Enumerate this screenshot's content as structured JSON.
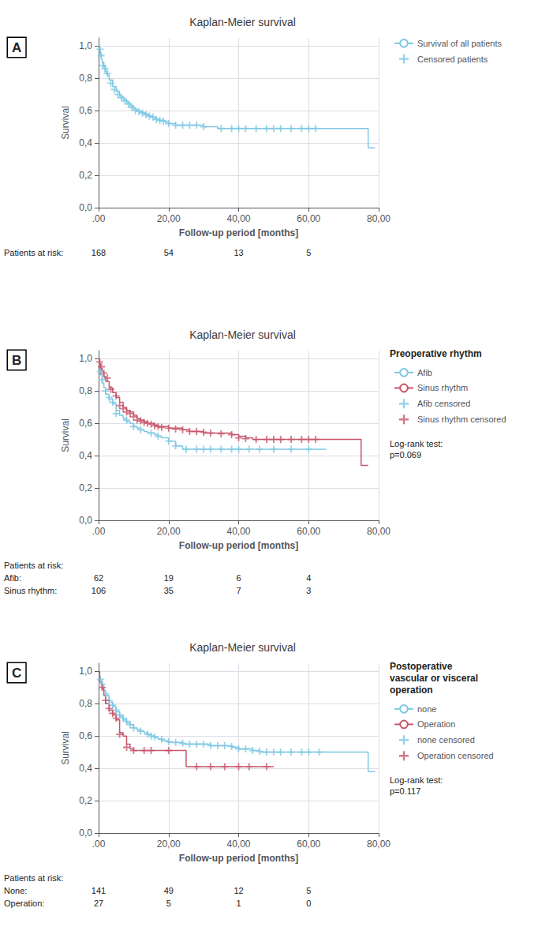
{
  "chart_data": [
    {
      "type": "line",
      "panel_label": "A",
      "title": "Kaplan-Meier survival",
      "xlabel": "Follow-up period [months]",
      "ylabel": "Survival",
      "xlim": [
        0,
        80
      ],
      "ylim": [
        0,
        1.05
      ],
      "xticks": [
        {
          "value": 0,
          "label": ".00"
        },
        {
          "value": 20,
          "label": "20,00"
        },
        {
          "value": 40,
          "label": "40,00"
        },
        {
          "value": 60,
          "label": "60,00"
        },
        {
          "value": 80,
          "label": "80,00"
        }
      ],
      "yticks": [
        {
          "value": 0.0,
          "label": "0,0"
        },
        {
          "value": 0.2,
          "label": "0,2"
        },
        {
          "value": 0.4,
          "label": "0,4"
        },
        {
          "value": 0.6,
          "label": "0,6"
        },
        {
          "value": 0.8,
          "label": "0,8"
        },
        {
          "value": 1.0,
          "label": "1,0"
        }
      ],
      "grid": true,
      "legend": "right",
      "series": [
        {
          "name": "Survival of all patients",
          "type": "line",
          "line_style": "step",
          "color": "#7EC8E3",
          "x": [
            0,
            0.3,
            0.5,
            0.8,
            1,
            1.5,
            2,
            2.5,
            3,
            4,
            5,
            6,
            7,
            8,
            9,
            10,
            11,
            12,
            13,
            14,
            15,
            16,
            17,
            18,
            19,
            20,
            22,
            24,
            26,
            28,
            30,
            32,
            34,
            36,
            38,
            40,
            42,
            44,
            46,
            48,
            50,
            52,
            54,
            56,
            58,
            60,
            65,
            77,
            79
          ],
          "values": [
            1.0,
            0.97,
            0.95,
            0.92,
            0.9,
            0.87,
            0.84,
            0.82,
            0.79,
            0.75,
            0.72,
            0.69,
            0.67,
            0.65,
            0.63,
            0.61,
            0.6,
            0.59,
            0.58,
            0.57,
            0.56,
            0.55,
            0.54,
            0.54,
            0.53,
            0.52,
            0.51,
            0.51,
            0.51,
            0.51,
            0.5,
            0.5,
            0.49,
            0.49,
            0.49,
            0.49,
            0.49,
            0.49,
            0.49,
            0.49,
            0.49,
            0.49,
            0.49,
            0.49,
            0.49,
            0.49,
            0.49,
            0.37,
            0.37
          ]
        },
        {
          "name": "Censored patients",
          "type": "scatter",
          "marker": "plus",
          "color": "#7EC8E3",
          "x": [
            0.4,
            0.7,
            1.2,
            1.8,
            2.5,
            3.5,
            4.5,
            5.5,
            6.5,
            7.5,
            8.5,
            9.5,
            10.5,
            11.5,
            12.5,
            13.5,
            14.5,
            15.5,
            16.5,
            17.5,
            18.5,
            20,
            22,
            24,
            26,
            28,
            30,
            35,
            38,
            40,
            42,
            45,
            48,
            50,
            52,
            55,
            58,
            60,
            62
          ],
          "values": [
            0.98,
            0.94,
            0.88,
            0.86,
            0.83,
            0.77,
            0.73,
            0.7,
            0.68,
            0.66,
            0.64,
            0.62,
            0.6,
            0.595,
            0.585,
            0.575,
            0.565,
            0.56,
            0.545,
            0.54,
            0.535,
            0.52,
            0.51,
            0.51,
            0.51,
            0.51,
            0.5,
            0.49,
            0.49,
            0.49,
            0.49,
            0.49,
            0.49,
            0.49,
            0.49,
            0.49,
            0.49,
            0.49,
            0.49
          ]
        }
      ],
      "risk_table": {
        "x": [
          0,
          20,
          40,
          60
        ],
        "rows": [
          {
            "label": "Patients at risk:",
            "values": [
              168,
              54,
              13,
              5
            ]
          }
        ]
      }
    },
    {
      "type": "line",
      "panel_label": "B",
      "title": "Kaplan-Meier survival",
      "xlabel": "Follow-up period [months]",
      "ylabel": "Survival",
      "xlim": [
        0,
        80
      ],
      "ylim": [
        0,
        1.05
      ],
      "xticks": [
        {
          "value": 0,
          "label": ".00"
        },
        {
          "value": 20,
          "label": "20,00"
        },
        {
          "value": 40,
          "label": "40,00"
        },
        {
          "value": 60,
          "label": "60,00"
        },
        {
          "value": 80,
          "label": "80,00"
        }
      ],
      "yticks": [
        {
          "value": 0.0,
          "label": "0,0"
        },
        {
          "value": 0.2,
          "label": "0,2"
        },
        {
          "value": 0.4,
          "label": "0,4"
        },
        {
          "value": 0.6,
          "label": "0,6"
        },
        {
          "value": 0.8,
          "label": "0,8"
        },
        {
          "value": 1.0,
          "label": "1,0"
        }
      ],
      "grid": true,
      "legend": "right",
      "legend_title": "Preoperative rhythm",
      "series": [
        {
          "name": "Afib",
          "type": "line",
          "line_style": "step",
          "color": "#7EC8E3",
          "x": [
            0,
            0.3,
            0.5,
            1,
            1.5,
            2,
            3,
            4,
            5,
            6,
            7,
            8,
            9,
            10,
            11,
            12,
            13,
            14,
            15,
            16,
            17,
            18,
            20,
            22,
            24,
            26,
            28,
            30,
            32,
            34,
            36,
            38,
            40,
            42,
            44,
            46,
            48,
            50,
            52,
            54,
            56,
            58,
            60,
            65
          ],
          "values": [
            1.0,
            0.95,
            0.9,
            0.85,
            0.82,
            0.78,
            0.75,
            0.72,
            0.68,
            0.65,
            0.63,
            0.61,
            0.6,
            0.58,
            0.57,
            0.56,
            0.55,
            0.54,
            0.54,
            0.53,
            0.52,
            0.51,
            0.49,
            0.46,
            0.44,
            0.44,
            0.44,
            0.44,
            0.44,
            0.44,
            0.44,
            0.44,
            0.44,
            0.44,
            0.44,
            0.44,
            0.44,
            0.44,
            0.44,
            0.44,
            0.44,
            0.44,
            0.44,
            0.44
          ]
        },
        {
          "name": "Sinus rhythm",
          "type": "line",
          "line_style": "step",
          "color": "#C8566B",
          "x": [
            0,
            0.2,
            0.5,
            1,
            1.5,
            2,
            3,
            4,
            5,
            6,
            7,
            8,
            9,
            10,
            11,
            12,
            13,
            14,
            15,
            16,
            17,
            18,
            20,
            22,
            24,
            26,
            28,
            30,
            32,
            34,
            36,
            38,
            40,
            42,
            44,
            46,
            48,
            50,
            52,
            54,
            56,
            58,
            60,
            62,
            64,
            66,
            68,
            75,
            77
          ],
          "values": [
            1.0,
            0.97,
            0.94,
            0.92,
            0.89,
            0.86,
            0.82,
            0.79,
            0.76,
            0.73,
            0.7,
            0.68,
            0.67,
            0.65,
            0.63,
            0.62,
            0.61,
            0.6,
            0.6,
            0.59,
            0.58,
            0.58,
            0.57,
            0.57,
            0.56,
            0.55,
            0.55,
            0.54,
            0.54,
            0.54,
            0.54,
            0.53,
            0.52,
            0.51,
            0.5,
            0.5,
            0.5,
            0.5,
            0.5,
            0.5,
            0.5,
            0.5,
            0.5,
            0.5,
            0.5,
            0.5,
            0.5,
            0.34,
            0.34
          ]
        },
        {
          "name": "Afib censored",
          "type": "scatter",
          "marker": "plus",
          "color": "#7EC8E3",
          "x": [
            0.5,
            1,
            2,
            3,
            4,
            5,
            8,
            10,
            12,
            15,
            17,
            20,
            22,
            25,
            28,
            30,
            32,
            35,
            38,
            40,
            43,
            46,
            50,
            55,
            60
          ],
          "values": [
            0.92,
            0.87,
            0.8,
            0.76,
            0.73,
            0.66,
            0.62,
            0.58,
            0.56,
            0.54,
            0.52,
            0.49,
            0.46,
            0.44,
            0.44,
            0.44,
            0.44,
            0.44,
            0.44,
            0.44,
            0.44,
            0.44,
            0.44,
            0.44,
            0.44
          ]
        },
        {
          "name": "Sinus rhythm censored",
          "type": "scatter",
          "marker": "plus",
          "color": "#C8566B",
          "x": [
            0.3,
            0.8,
            1.5,
            2.5,
            3.5,
            5,
            6,
            7,
            8,
            9,
            10,
            11,
            12,
            13,
            14,
            15,
            16,
            17,
            18,
            20,
            22,
            24,
            26,
            28,
            30,
            32,
            35,
            38,
            40,
            42,
            45,
            48,
            50,
            52,
            55,
            58,
            60,
            62
          ],
          "values": [
            0.98,
            0.95,
            0.91,
            0.88,
            0.81,
            0.77,
            0.71,
            0.69,
            0.67,
            0.66,
            0.64,
            0.62,
            0.615,
            0.605,
            0.6,
            0.595,
            0.585,
            0.58,
            0.575,
            0.57,
            0.565,
            0.56,
            0.55,
            0.55,
            0.545,
            0.54,
            0.535,
            0.53,
            0.51,
            0.505,
            0.5,
            0.5,
            0.5,
            0.5,
            0.5,
            0.5,
            0.5,
            0.5
          ]
        }
      ],
      "annotations": [
        "Log-rank test:\np=0.069"
      ],
      "risk_table": {
        "title": "Patients at risk:",
        "x": [
          0,
          20,
          40,
          60
        ],
        "rows": [
          {
            "label": "Afib:",
            "values": [
              62,
              19,
              6,
              4
            ]
          },
          {
            "label": "Sinus rhythm:",
            "values": [
              106,
              35,
              7,
              3
            ]
          }
        ]
      }
    },
    {
      "type": "line",
      "panel_label": "C",
      "title": "Kaplan-Meier survival",
      "xlabel": "Follow-up period [months]",
      "ylabel": "Survival",
      "xlim": [
        0,
        80
      ],
      "ylim": [
        0,
        1.05
      ],
      "xticks": [
        {
          "value": 0,
          "label": ".00"
        },
        {
          "value": 20,
          "label": "20,00"
        },
        {
          "value": 40,
          "label": "40,00"
        },
        {
          "value": 60,
          "label": "60,00"
        },
        {
          "value": 80,
          "label": "80,00"
        }
      ],
      "yticks": [
        {
          "value": 0.0,
          "label": "0,0"
        },
        {
          "value": 0.2,
          "label": "0,2"
        },
        {
          "value": 0.4,
          "label": "0,4"
        },
        {
          "value": 0.6,
          "label": "0,6"
        },
        {
          "value": 0.8,
          "label": "0,8"
        },
        {
          "value": 1.0,
          "label": "1,0"
        }
      ],
      "grid": true,
      "legend": "right",
      "legend_title": "Postoperative\nvascular or visceral\noperation",
      "series": [
        {
          "name": "none",
          "type": "line",
          "line_style": "step",
          "color": "#7EC8E3",
          "x": [
            0,
            0.3,
            0.5,
            1,
            1.5,
            2,
            3,
            4,
            5,
            6,
            7,
            8,
            9,
            10,
            11,
            12,
            13,
            14,
            15,
            16,
            17,
            18,
            20,
            22,
            24,
            26,
            28,
            30,
            32,
            34,
            36,
            38,
            40,
            42,
            44,
            46,
            48,
            50,
            52,
            54,
            56,
            58,
            60,
            62,
            65,
            66,
            77,
            79
          ],
          "values": [
            1.0,
            0.97,
            0.94,
            0.91,
            0.88,
            0.85,
            0.81,
            0.78,
            0.75,
            0.72,
            0.7,
            0.68,
            0.67,
            0.65,
            0.64,
            0.63,
            0.62,
            0.61,
            0.6,
            0.59,
            0.58,
            0.57,
            0.56,
            0.56,
            0.55,
            0.55,
            0.55,
            0.55,
            0.54,
            0.54,
            0.54,
            0.53,
            0.52,
            0.52,
            0.51,
            0.5,
            0.5,
            0.5,
            0.5,
            0.5,
            0.5,
            0.5,
            0.5,
            0.5,
            0.5,
            0.5,
            0.38,
            0.38
          ]
        },
        {
          "name": "Operation",
          "type": "line",
          "line_style": "step",
          "color": "#C8566B",
          "x": [
            0,
            0.3,
            0.5,
            1,
            1.5,
            2,
            3,
            4,
            5,
            6,
            7,
            8,
            9,
            10,
            15,
            20,
            25,
            27,
            30,
            35,
            40,
            42,
            45,
            50
          ],
          "values": [
            1.0,
            0.96,
            0.93,
            0.89,
            0.85,
            0.8,
            0.76,
            0.73,
            0.7,
            0.62,
            0.6,
            0.55,
            0.52,
            0.51,
            0.51,
            0.51,
            0.41,
            0.41,
            0.41,
            0.41,
            0.41,
            0.41,
            0.41,
            0.41
          ]
        },
        {
          "name": "none censored",
          "type": "scatter",
          "marker": "plus",
          "color": "#7EC8E3",
          "x": [
            0.5,
            1,
            2,
            3,
            4,
            5,
            6,
            7,
            8,
            9,
            10,
            12,
            14,
            15,
            16,
            18,
            20,
            22,
            24,
            26,
            28,
            30,
            32,
            34,
            36,
            38,
            40,
            42,
            44,
            46,
            48,
            50,
            52,
            55,
            58,
            60,
            63
          ],
          "values": [
            0.95,
            0.92,
            0.86,
            0.82,
            0.79,
            0.76,
            0.73,
            0.71,
            0.69,
            0.67,
            0.65,
            0.63,
            0.61,
            0.6,
            0.595,
            0.58,
            0.565,
            0.56,
            0.555,
            0.55,
            0.55,
            0.55,
            0.54,
            0.54,
            0.54,
            0.535,
            0.52,
            0.52,
            0.51,
            0.505,
            0.5,
            0.5,
            0.5,
            0.5,
            0.5,
            0.5,
            0.5
          ]
        },
        {
          "name": "Operation censored",
          "type": "scatter",
          "marker": "plus",
          "color": "#C8566B",
          "x": [
            1,
            2,
            3,
            4,
            5,
            6,
            8,
            10,
            13,
            15,
            20,
            28,
            32,
            36,
            40,
            43,
            48
          ],
          "values": [
            0.9,
            0.82,
            0.77,
            0.74,
            0.71,
            0.61,
            0.53,
            0.51,
            0.51,
            0.51,
            0.51,
            0.41,
            0.41,
            0.41,
            0.41,
            0.41,
            0.41
          ]
        }
      ],
      "annotations": [
        "Log-rank test:\np=0.117"
      ],
      "risk_table": {
        "title": "Patients at risk:",
        "x": [
          0,
          20,
          40,
          60
        ],
        "rows": [
          {
            "label": "None:",
            "values": [
              141,
              49,
              12,
              5
            ]
          },
          {
            "label": "Operation:",
            "values": [
              27,
              5,
              1,
              0
            ]
          }
        ]
      }
    }
  ]
}
